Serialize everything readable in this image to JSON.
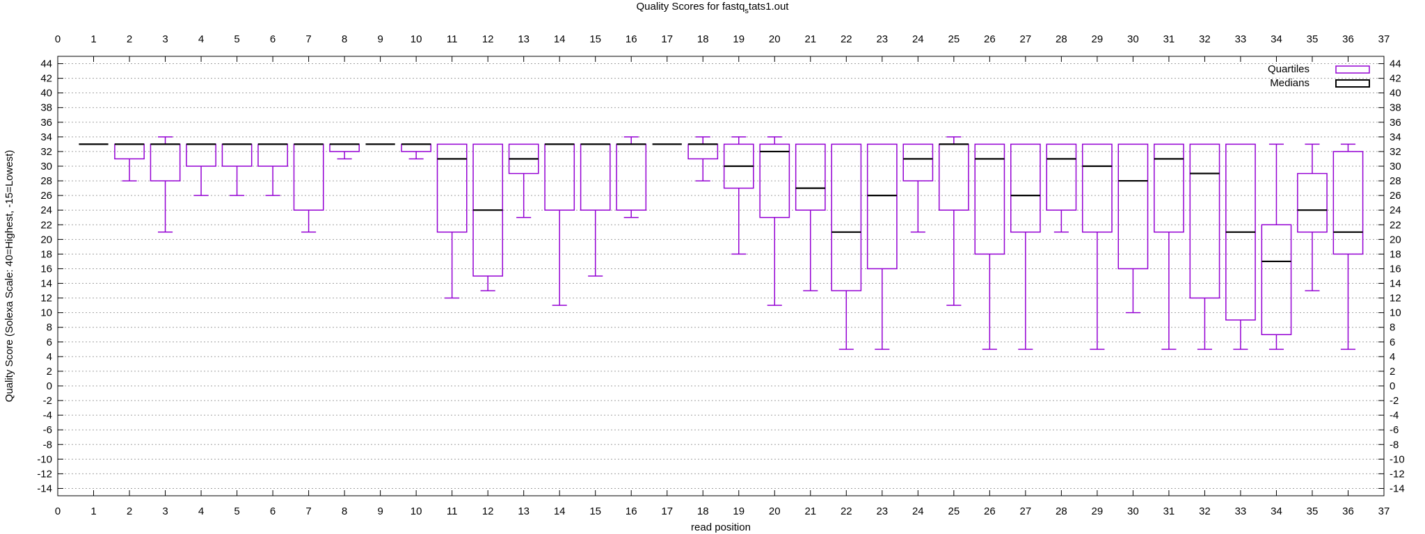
{
  "chart_data": {
    "type": "boxplot",
    "title": "Quality Scores for fastq_stats1.out",
    "title_parts": {
      "pre": "Quality Scores for fastq",
      "sub": "s",
      "post": "tats1.out"
    },
    "xlabel": "read position",
    "ylabel": "Quality Score (Solexa Scale: 40=Highest, -15=Lowest)",
    "xlim": [
      0,
      37
    ],
    "ylim": [
      -15,
      45
    ],
    "x_ticks": [
      0,
      1,
      2,
      3,
      4,
      5,
      6,
      7,
      8,
      9,
      10,
      11,
      12,
      13,
      14,
      15,
      16,
      17,
      18,
      19,
      20,
      21,
      22,
      23,
      24,
      25,
      26,
      27,
      28,
      29,
      30,
      31,
      32,
      33,
      34,
      35,
      36,
      37
    ],
    "y_ticks": [
      -14,
      -12,
      -10,
      -8,
      -6,
      -4,
      -2,
      0,
      2,
      4,
      6,
      8,
      10,
      12,
      14,
      16,
      18,
      20,
      22,
      24,
      26,
      28,
      30,
      32,
      34,
      36,
      38,
      40,
      42,
      44
    ],
    "grid": "horizontal dotted",
    "legend_position": "top-right",
    "colors": {
      "box": "#9400d3",
      "median": "#000000",
      "grid": "#a0a0a0"
    },
    "series": [
      {
        "name": "Quartiles"
      },
      {
        "name": "Medians"
      }
    ],
    "boxes": [
      {
        "x": 1,
        "min": 33,
        "q1": 33,
        "median": 33,
        "q3": 33,
        "max": 33
      },
      {
        "x": 2,
        "min": 28,
        "q1": 31,
        "median": 33,
        "q3": 33,
        "max": 33
      },
      {
        "x": 3,
        "min": 21,
        "q1": 28,
        "median": 33,
        "q3": 33,
        "max": 34
      },
      {
        "x": 4,
        "min": 26,
        "q1": 30,
        "median": 33,
        "q3": 33,
        "max": 33
      },
      {
        "x": 5,
        "min": 26,
        "q1": 30,
        "median": 33,
        "q3": 33,
        "max": 33
      },
      {
        "x": 6,
        "min": 26,
        "q1": 30,
        "median": 33,
        "q3": 33,
        "max": 33
      },
      {
        "x": 7,
        "min": 21,
        "q1": 24,
        "median": 33,
        "q3": 33,
        "max": 33
      },
      {
        "x": 8,
        "min": 31,
        "q1": 32,
        "median": 33,
        "q3": 33,
        "max": 33
      },
      {
        "x": 9,
        "min": 33,
        "q1": 33,
        "median": 33,
        "q3": 33,
        "max": 33
      },
      {
        "x": 10,
        "min": 31,
        "q1": 32,
        "median": 33,
        "q3": 33,
        "max": 33
      },
      {
        "x": 11,
        "min": 12,
        "q1": 21,
        "median": 31,
        "q3": 33,
        "max": 33
      },
      {
        "x": 12,
        "min": 13,
        "q1": 15,
        "median": 24,
        "q3": 33,
        "max": 33
      },
      {
        "x": 13,
        "min": 23,
        "q1": 29,
        "median": 31,
        "q3": 33,
        "max": 33
      },
      {
        "x": 14,
        "min": 11,
        "q1": 24,
        "median": 33,
        "q3": 33,
        "max": 33
      },
      {
        "x": 15,
        "min": 15,
        "q1": 24,
        "median": 33,
        "q3": 33,
        "max": 33
      },
      {
        "x": 16,
        "min": 23,
        "q1": 24,
        "median": 33,
        "q3": 33,
        "max": 34
      },
      {
        "x": 17,
        "min": 33,
        "q1": 33,
        "median": 33,
        "q3": 33,
        "max": 33
      },
      {
        "x": 18,
        "min": 28,
        "q1": 31,
        "median": 33,
        "q3": 33,
        "max": 34
      },
      {
        "x": 19,
        "min": 18,
        "q1": 27,
        "median": 30,
        "q3": 33,
        "max": 34
      },
      {
        "x": 20,
        "min": 11,
        "q1": 23,
        "median": 32,
        "q3": 33,
        "max": 34
      },
      {
        "x": 21,
        "min": 13,
        "q1": 24,
        "median": 27,
        "q3": 33,
        "max": 33
      },
      {
        "x": 22,
        "min": 5,
        "q1": 13,
        "median": 21,
        "q3": 33,
        "max": 33
      },
      {
        "x": 23,
        "min": 5,
        "q1": 16,
        "median": 26,
        "q3": 33,
        "max": 33
      },
      {
        "x": 24,
        "min": 21,
        "q1": 28,
        "median": 31,
        "q3": 33,
        "max": 33
      },
      {
        "x": 25,
        "min": 11,
        "q1": 24,
        "median": 33,
        "q3": 33,
        "max": 34
      },
      {
        "x": 26,
        "min": 5,
        "q1": 18,
        "median": 31,
        "q3": 33,
        "max": 33
      },
      {
        "x": 27,
        "min": 5,
        "q1": 21,
        "median": 26,
        "q3": 33,
        "max": 33
      },
      {
        "x": 28,
        "min": 21,
        "q1": 24,
        "median": 31,
        "q3": 33,
        "max": 33
      },
      {
        "x": 29,
        "min": 5,
        "q1": 21,
        "median": 30,
        "q3": 33,
        "max": 33
      },
      {
        "x": 30,
        "min": 10,
        "q1": 16,
        "median": 28,
        "q3": 33,
        "max": 33
      },
      {
        "x": 31,
        "min": 5,
        "q1": 21,
        "median": 31,
        "q3": 33,
        "max": 33
      },
      {
        "x": 32,
        "min": 5,
        "q1": 12,
        "median": 29,
        "q3": 33,
        "max": 33
      },
      {
        "x": 33,
        "min": 5,
        "q1": 9,
        "median": 21,
        "q3": 33,
        "max": 33
      },
      {
        "x": 34,
        "min": 5,
        "q1": 7,
        "median": 17,
        "q3": 22,
        "max": 33
      },
      {
        "x": 35,
        "min": 13,
        "q1": 21,
        "median": 24,
        "q3": 29,
        "max": 33
      },
      {
        "x": 36,
        "min": 5,
        "q1": 18,
        "median": 21,
        "q3": 32,
        "max": 33
      }
    ]
  }
}
